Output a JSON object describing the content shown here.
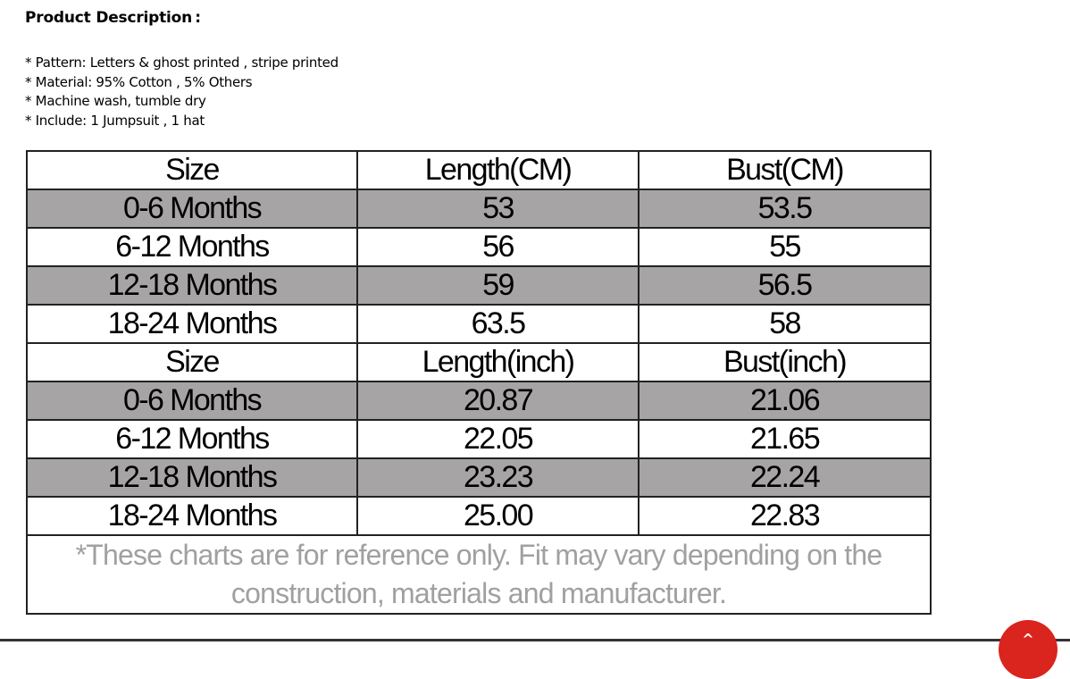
{
  "description": {
    "title": "Product Description :",
    "bullets": [
      "Pattern: Letters & ghost printed , stripe printed",
      "Material: 95% Cotton , 5% Others",
      "Machine wash, tumble dry",
      "Include: 1 Jumpsuit , 1 hat"
    ]
  },
  "size_chart": {
    "cm_header": [
      "Size",
      "Length(CM)",
      "Bust(CM)"
    ],
    "cm_rows": [
      [
        "0-6 Months",
        "53",
        "53.5"
      ],
      [
        "6-12 Months",
        "56",
        "55"
      ],
      [
        "12-18 Months",
        "59",
        "56.5"
      ],
      [
        "18-24 Months",
        "63.5",
        "58"
      ]
    ],
    "inch_header": [
      "Size",
      "Length(inch)",
      "Bust(inch)"
    ],
    "inch_rows": [
      [
        "0-6 Months",
        "20.87",
        "21.06"
      ],
      [
        "6-12 Months",
        "22.05",
        "21.65"
      ],
      [
        "12-18 Months",
        "23.23",
        "22.24"
      ],
      [
        "18-24 Months",
        "25.00",
        "22.83"
      ]
    ],
    "note": "*These charts are for reference only. Fit may vary depending on the construction, materials and manufacturer."
  },
  "scroll_top_button": {
    "icon": "chevron-up-icon",
    "glyph": "^",
    "color": "#d9251d"
  },
  "colors": {
    "shaded_row": "#a6a4a4",
    "note_text": "#a0a0a0"
  }
}
